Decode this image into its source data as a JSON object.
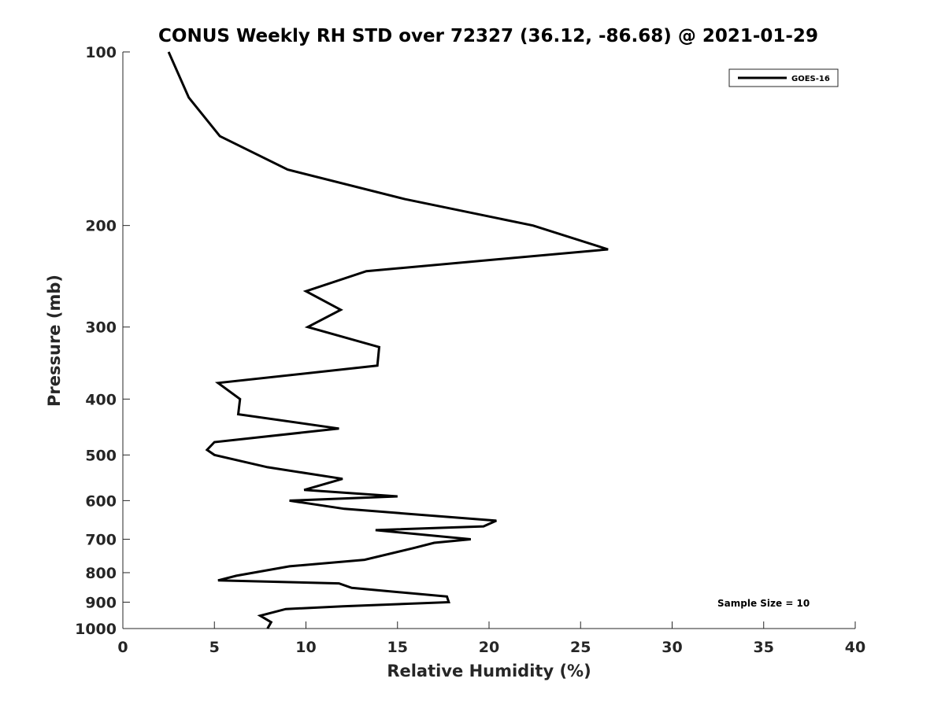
{
  "chart_data": {
    "type": "line",
    "title": "CONUS Weekly RH STD over 72327 (36.12, -86.68) @ 2021-01-29",
    "xlabel": "Relative Humidity (%)",
    "ylabel": "Pressure (mb)",
    "xlim": [
      0,
      40
    ],
    "ylim": [
      100,
      1000
    ],
    "yscale": "log",
    "y_reversed": true,
    "grid": false,
    "x_ticks": [
      "0",
      "5",
      "10",
      "15",
      "20",
      "25",
      "30",
      "35",
      "40"
    ],
    "y_ticks": [
      "100",
      "200",
      "300",
      "400",
      "500",
      "600",
      "700",
      "800",
      "900",
      "1000"
    ],
    "legend": {
      "position": "top-right",
      "entries": [
        "GOES-16"
      ]
    },
    "annotation": "Sample Size = 10",
    "series": [
      {
        "name": "GOES-16",
        "color": "#000000",
        "points": [
          [
            2.5,
            100
          ],
          [
            3.6,
            120
          ],
          [
            5.3,
            140
          ],
          [
            9.0,
            160
          ],
          [
            15.4,
            180
          ],
          [
            22.4,
            200
          ],
          [
            26.5,
            220
          ],
          [
            13.3,
            240
          ],
          [
            10.0,
            260
          ],
          [
            11.9,
            280
          ],
          [
            10.1,
            300
          ],
          [
            14.0,
            325
          ],
          [
            13.9,
            350
          ],
          [
            5.2,
            375
          ],
          [
            6.4,
            400
          ],
          [
            6.3,
            425
          ],
          [
            11.8,
            450
          ],
          [
            5.0,
            475
          ],
          [
            4.6,
            490
          ],
          [
            5.0,
            500
          ],
          [
            7.9,
            525
          ],
          [
            12.0,
            550
          ],
          [
            9.9,
            575
          ],
          [
            15.0,
            590
          ],
          [
            9.1,
            600
          ],
          [
            12.1,
            620
          ],
          [
            20.4,
            650
          ],
          [
            19.7,
            665
          ],
          [
            13.8,
            675
          ],
          [
            19.0,
            700
          ],
          [
            17.0,
            710
          ],
          [
            15.9,
            725
          ],
          [
            13.2,
            760
          ],
          [
            9.1,
            780
          ],
          [
            6.2,
            810
          ],
          [
            5.2,
            825
          ],
          [
            11.8,
            835
          ],
          [
            12.5,
            850
          ],
          [
            17.7,
            880
          ],
          [
            17.8,
            900
          ],
          [
            12.0,
            915
          ],
          [
            8.9,
            925
          ],
          [
            7.5,
            950
          ],
          [
            8.1,
            975
          ],
          [
            7.9,
            1000
          ]
        ]
      }
    ]
  }
}
